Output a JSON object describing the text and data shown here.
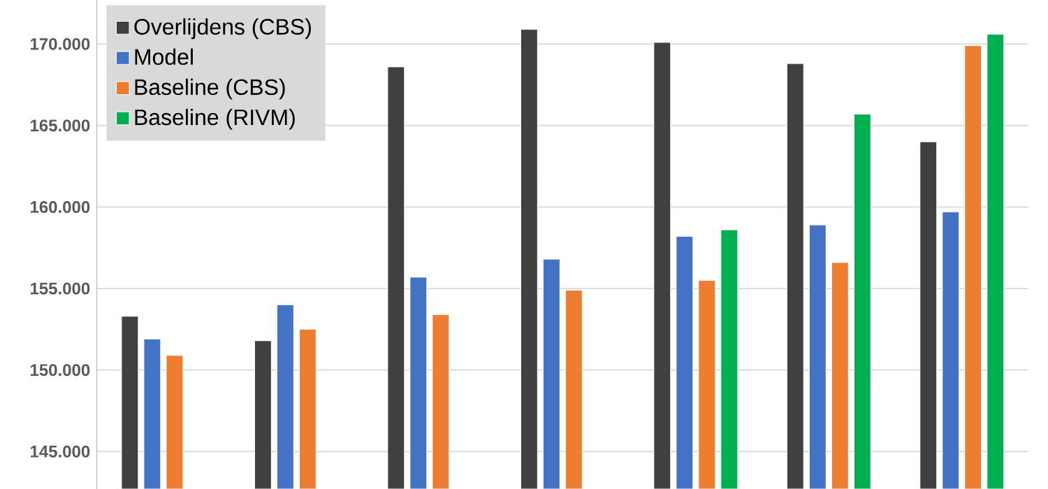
{
  "chart_data": {
    "type": "bar",
    "categories": [
      null,
      null,
      null,
      null,
      null,
      null,
      null
    ],
    "series": [
      {
        "name": "Overlijdens (CBS)",
        "color": "#404040",
        "values": [
          153300,
          151800,
          168600,
          170900,
          170100,
          168800,
          164000
        ]
      },
      {
        "name": "Model",
        "color": "#4472c4",
        "values": [
          151900,
          154000,
          155700,
          156800,
          158200,
          158900,
          159700
        ]
      },
      {
        "name": "Baseline (CBS)",
        "color": "#ed7d31",
        "values": [
          150900,
          152500,
          153400,
          154900,
          155500,
          156600,
          169900
        ]
      },
      {
        "name": "Baseline (RIVM)",
        "color": "#00b050",
        "values": [
          null,
          null,
          null,
          null,
          158600,
          165700,
          170600
        ]
      }
    ],
    "ylim": [
      142700,
      172700
    ],
    "yticks": [
      {
        "value": 145000,
        "label": "145.000"
      },
      {
        "value": 150000,
        "label": "150.000"
      },
      {
        "value": 155000,
        "label": "155.000"
      },
      {
        "value": 160000,
        "label": "160.000"
      },
      {
        "value": 165000,
        "label": "165.000"
      },
      {
        "value": 170000,
        "label": "170.000"
      }
    ],
    "grid": "y",
    "legend": "top left"
  }
}
